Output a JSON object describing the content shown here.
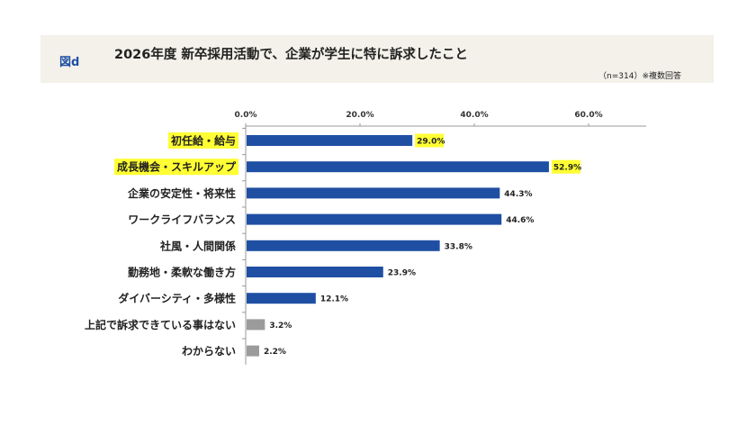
{
  "header": {
    "figure_label": "図d",
    "title": "2026年度 新卒採用活動で、企業が学生に特に訴求したこと",
    "note": "（n=314）※複数回答"
  },
  "colors": {
    "bar_primary": "#1f4fa3",
    "bar_secondary": "#9b9b9b",
    "highlight": "#ffff33",
    "header_band": "#f3f1ea"
  },
  "chart_data": {
    "type": "bar",
    "orientation": "horizontal",
    "categories": [
      "初任給・給与",
      "成長機会・スキルアップ",
      "企業の安定性・将来性",
      "ワークライフバランス",
      "社風・人間関係",
      "勤務地・柔軟な働き方",
      "ダイバーシティ・多様性",
      "上記で訴求できている事はない",
      "わからない"
    ],
    "values": [
      29.0,
      52.9,
      44.3,
      44.6,
      33.8,
      23.9,
      12.1,
      3.2,
      2.2
    ],
    "value_labels": [
      "29.0%",
      "52.9%",
      "44.3%",
      "44.6%",
      "33.8%",
      "23.9%",
      "12.1%",
      "3.2%",
      "2.2%"
    ],
    "highlighted": [
      true,
      true,
      false,
      false,
      false,
      false,
      false,
      false,
      false
    ],
    "bar_color_group": [
      "primary",
      "primary",
      "primary",
      "primary",
      "primary",
      "primary",
      "primary",
      "secondary",
      "secondary"
    ],
    "xlim": [
      0,
      70
    ],
    "xticks": [
      0,
      20,
      40,
      60
    ],
    "xtick_labels": [
      "0.0%",
      "20.0%",
      "40.0%",
      "60.0%"
    ],
    "axis_position": "top",
    "grid": false,
    "legend": "none"
  }
}
